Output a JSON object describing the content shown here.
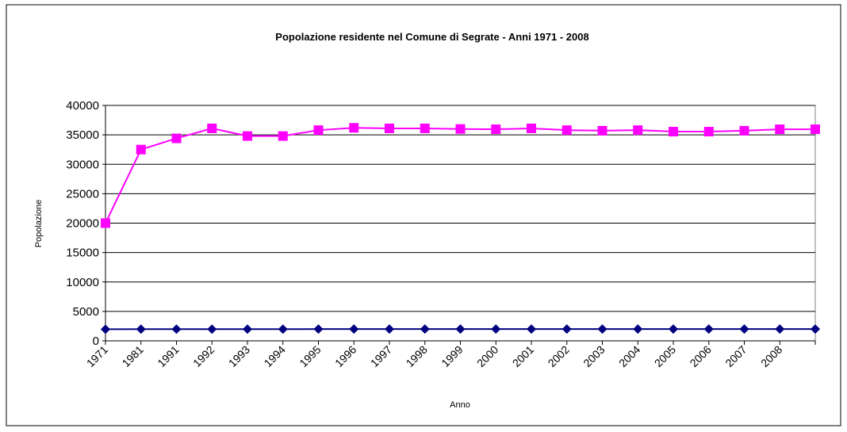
{
  "chart_data": {
    "type": "line",
    "title": "Popolazione residente nel Comune di Segrate - Anni 1971 - 2008",
    "x_label": "Anno",
    "y_label": "Popolazione",
    "categories": [
      "1971",
      "1981",
      "1991",
      "1992",
      "1993",
      "1994",
      "1995",
      "1996",
      "1997",
      "1998",
      "1999",
      "2000",
      "2001",
      "2002",
      "2003",
      "2004",
      "2005",
      "2006",
      "2007",
      "2008",
      null
    ],
    "series": [
      {
        "color": "#000080",
        "marker": "diamond",
        "values": [
          1971,
          1981,
          1991,
          1992,
          1993,
          1994,
          1995,
          1996,
          1997,
          1998,
          1999,
          2000,
          2001,
          2002,
          2003,
          2004,
          2005,
          2006,
          2007,
          2008,
          2009
        ]
      },
      {
        "color": "#ff00ff",
        "marker": "square",
        "values": [
          20000,
          32500,
          34400,
          36100,
          34800,
          34800,
          35800,
          36200,
          36100,
          36100,
          36000,
          35950,
          36100,
          35800,
          35700,
          35800,
          35550,
          35550,
          35700,
          35950,
          35950
        ]
      }
    ],
    "ylim": [
      0,
      40000
    ],
    "yticks": [
      0,
      5000,
      10000,
      15000,
      20000,
      25000,
      30000,
      35000,
      40000
    ],
    "grid": true
  }
}
